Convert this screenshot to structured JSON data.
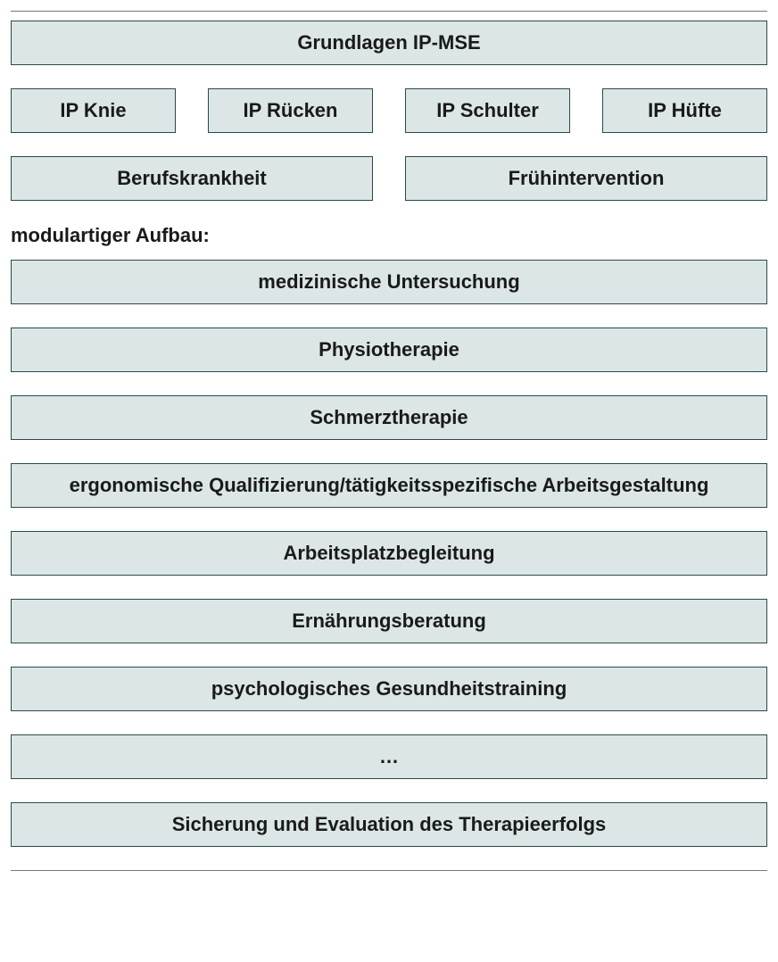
{
  "diagram": {
    "type": "infographic",
    "box_background": "#dce6e6",
    "box_border": "#2a4a4a",
    "text_color": "#1a1a1a",
    "font_size_pt": 16,
    "font_weight": "600",
    "header": "Grundlagen IP-MSE",
    "ip_row": [
      "IP Knie",
      "IP Rücken",
      "IP Schulter",
      "IP Hüfte"
    ],
    "category_row": [
      "Berufskrankheit",
      "Frühintervention"
    ],
    "section_label": "modulartiger Aufbau:",
    "modules": [
      "medizinische Untersuchung",
      "Physiotherapie",
      "Schmerztherapie",
      "ergonomische Qualifizierung/tätigkeitsspezifische Arbeitsgestaltung",
      "Arbeitsplatzbegleitung",
      "Ernährungsberatung",
      "psychologisches Gesundheitstraining",
      "…",
      "Sicherung und Evaluation des Therapieerfolgs"
    ]
  }
}
